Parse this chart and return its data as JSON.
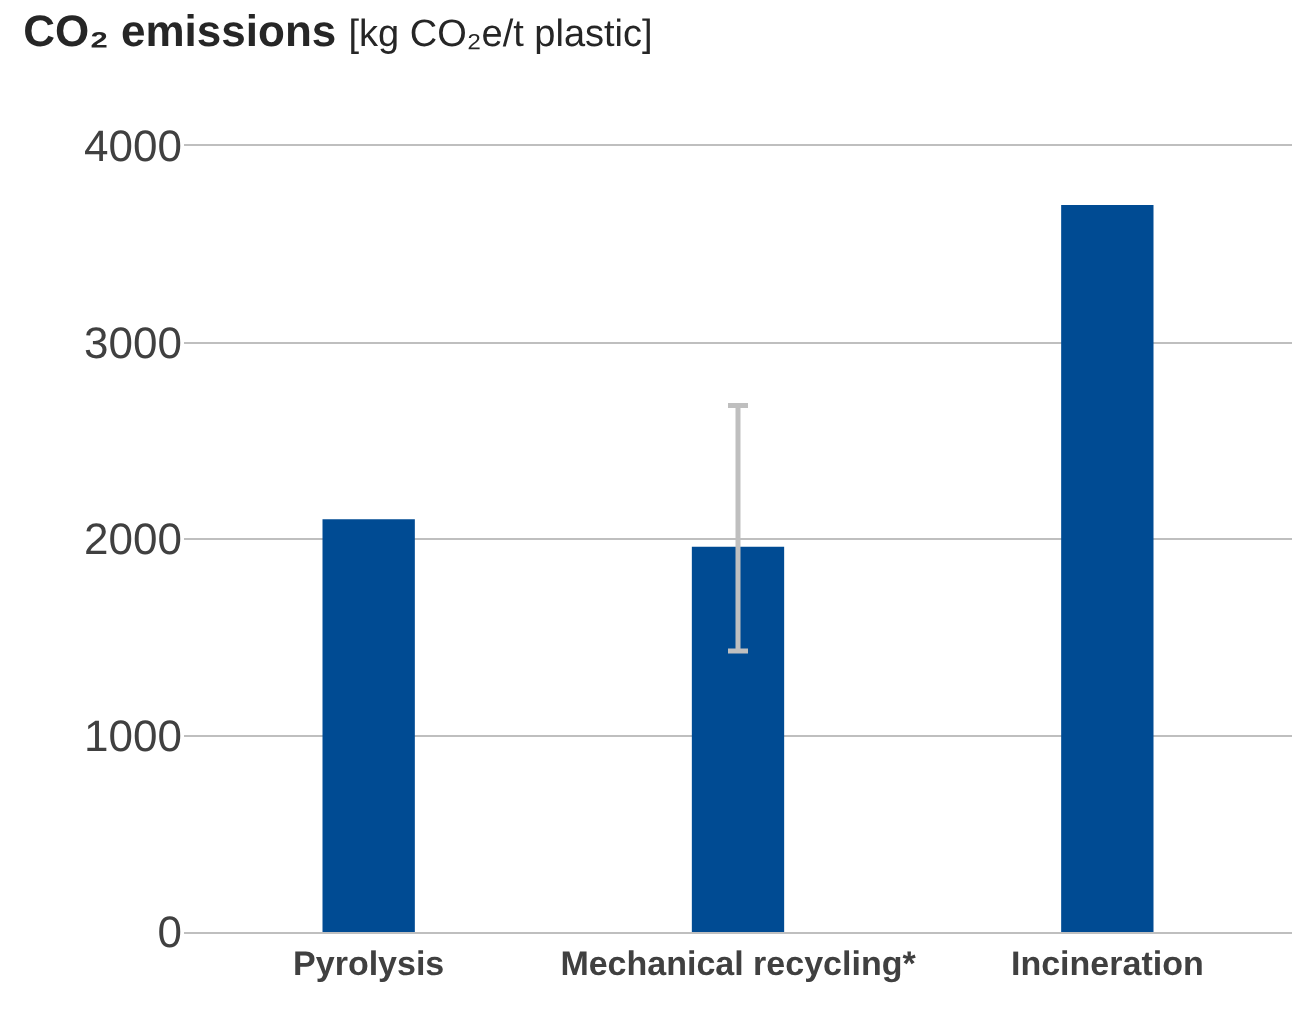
{
  "chart_data": {
    "type": "bar",
    "title": "CO₂ emissions",
    "ylabel": "[kg CO₂e/t plastic]",
    "categories": [
      "Pyrolysis",
      "Mechanical recycling*",
      "Incineration"
    ],
    "values": [
      2100,
      1960,
      3700
    ],
    "errors": [
      null,
      [
        1430,
        2680
      ],
      null
    ],
    "color": "#004b93",
    "ylim": [
      0,
      4000
    ],
    "yticks": [
      0,
      1000,
      2000,
      3000,
      4000
    ],
    "grid": "y"
  }
}
